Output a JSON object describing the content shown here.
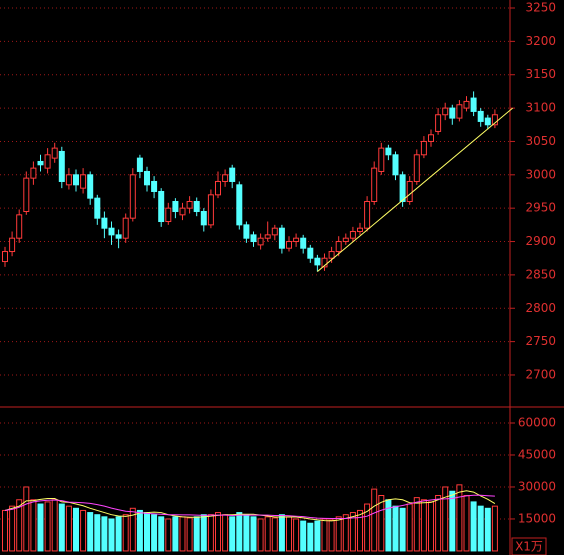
{
  "chart_data": [
    {
      "type": "candlestick",
      "up_color": "#ff3a3a",
      "down_color": "#54ffff",
      "ylim": [
        2652,
        3262
      ],
      "yticks": [
        2700,
        2750,
        2800,
        2850,
        2900,
        2950,
        3000,
        3050,
        3100,
        3150,
        3200,
        3250
      ],
      "grid": true,
      "open": [
        2870,
        2885,
        2905,
        2945,
        2995,
        3020,
        3010,
        3025,
        3035,
        2985,
        3000,
        2980,
        3000,
        2965,
        2935,
        2920,
        2910,
        2905,
        2935,
        3025,
        3005,
        2990,
        2975,
        2930,
        2960,
        2940,
        2950,
        2960,
        2945,
        2925,
        2970,
        2990,
        3010,
        2985,
        2925,
        2910,
        2895,
        2905,
        2910,
        2920,
        2890,
        2900,
        2905,
        2890,
        2875,
        2862,
        2875,
        2885,
        2900,
        2905,
        2915,
        2920,
        2960,
        3005,
        3040,
        3030,
        3000,
        2960,
        2990,
        3030,
        3050,
        3065,
        3090,
        3100,
        3085,
        3100,
        3115,
        3095,
        3085,
        3075
      ],
      "high": [
        2892,
        2915,
        2948,
        3005,
        3020,
        3030,
        3040,
        3048,
        3042,
        3010,
        3008,
        3010,
        3005,
        2970,
        2945,
        2930,
        2918,
        2942,
        3010,
        3030,
        3012,
        2998,
        2980,
        2958,
        2965,
        2958,
        2968,
        2966,
        2950,
        2978,
        3005,
        3008,
        3015,
        2990,
        2930,
        2915,
        2912,
        2930,
        2925,
        2925,
        2908,
        2912,
        2910,
        2895,
        2880,
        2882,
        2892,
        2908,
        2912,
        2922,
        2928,
        2968,
        3020,
        3048,
        3045,
        3035,
        3005,
        2998,
        3038,
        3058,
        3068,
        3100,
        3108,
        3105,
        3112,
        3118,
        3125,
        3100,
        3090,
        3098
      ],
      "low": [
        2862,
        2878,
        2898,
        2940,
        2985,
        3005,
        3002,
        3018,
        2980,
        2978,
        2975,
        2972,
        2955,
        2925,
        2905,
        2895,
        2890,
        2898,
        2930,
        2995,
        2975,
        2965,
        2922,
        2925,
        2935,
        2932,
        2942,
        2938,
        2915,
        2920,
        2965,
        2982,
        2980,
        2918,
        2898,
        2892,
        2888,
        2900,
        2902,
        2882,
        2885,
        2892,
        2882,
        2868,
        2855,
        2856,
        2868,
        2878,
        2895,
        2900,
        2910,
        2915,
        2955,
        3000,
        3022,
        2992,
        2952,
        2955,
        2985,
        3025,
        3042,
        3060,
        3082,
        3075,
        3080,
        3095,
        3088,
        3072,
        3068,
        3070
      ],
      "close": [
        2885,
        2905,
        2940,
        2995,
        3010,
        3015,
        3030,
        3040,
        2990,
        3000,
        2985,
        3000,
        2965,
        2935,
        2920,
        2910,
        2905,
        2935,
        3000,
        3005,
        2985,
        2975,
        2930,
        2950,
        2945,
        2950,
        2960,
        2945,
        2925,
        2970,
        2990,
        3000,
        2990,
        2925,
        2905,
        2900,
        2905,
        2910,
        2920,
        2890,
        2900,
        2905,
        2890,
        2875,
        2865,
        2875,
        2885,
        2900,
        2905,
        2915,
        2920,
        2960,
        3010,
        3040,
        3030,
        3000,
        2960,
        2990,
        3030,
        3050,
        3060,
        3090,
        3100,
        3085,
        3105,
        3110,
        3095,
        3080,
        3075,
        3090
      ],
      "trendline": {
        "x": [
          44,
          71.5
        ],
        "y": [
          2855,
          3100
        ],
        "color": "#ffff66"
      }
    },
    {
      "type": "volume",
      "unit_label": "X1万",
      "ylim": [
        -1900,
        67500
      ],
      "yticks": [
        15000,
        30000,
        45000,
        60000
      ],
      "grid": true,
      "values": [
        19000,
        21000,
        24000,
        30000,
        24000,
        22000,
        23000,
        24000,
        22000,
        21000,
        20000,
        19000,
        18000,
        17000,
        16000,
        15000,
        16000,
        17000,
        20000,
        19000,
        18000,
        17000,
        16000,
        15000,
        16000,
        16000,
        15500,
        16000,
        17000,
        17000,
        18000,
        17000,
        16000,
        18000,
        17000,
        16000,
        15000,
        16000,
        15500,
        17000,
        16000,
        15000,
        14000,
        13000,
        14000,
        15000,
        14500,
        16000,
        17000,
        18000,
        19000,
        22000,
        29000,
        26000,
        24000,
        21000,
        20000,
        22000,
        25000,
        24000,
        23000,
        26000,
        30000,
        28000,
        31000,
        26000,
        23000,
        21000,
        20000,
        21000
      ],
      "series": [
        {
          "color": "#ffff66",
          "values": [
            19000,
            20000,
            21000,
            23500,
            23600,
            24200,
            24600,
            24600,
            23000,
            22800,
            22000,
            21200,
            20000,
            19000,
            18000,
            17000,
            16400,
            16200,
            16800,
            17800,
            18000,
            18200,
            18000,
            17000,
            16400,
            16000,
            15800,
            15800,
            16000,
            16300,
            16700,
            17000,
            17000,
            17200,
            17200,
            17200,
            16800,
            16400,
            15900,
            15900,
            15900,
            15900,
            15500,
            15000,
            14600,
            14200,
            14100,
            14500,
            15300,
            16100,
            17000,
            18500,
            21000,
            22800,
            24000,
            24400,
            24000,
            22600,
            22400,
            22600,
            22800,
            24000,
            25200,
            26200,
            27600,
            28200,
            27600,
            25800,
            24200,
            22200
          ]
        },
        {
          "color": "#ff44ff",
          "values": [
            19000,
            19500,
            20500,
            22000,
            23000,
            23500,
            23800,
            23900,
            23600,
            22900,
            22800,
            22600,
            22300,
            21700,
            21000,
            20100,
            19300,
            18600,
            18400,
            17900,
            17600,
            17400,
            17200,
            17000,
            17000,
            16900,
            16900,
            16800,
            16700,
            16800,
            16800,
            16800,
            16600,
            16800,
            16800,
            16800,
            16800,
            16800,
            16600,
            16600,
            16500,
            16300,
            16100,
            15700,
            15400,
            15300,
            15200,
            15200,
            15200,
            15500,
            15700,
            16300,
            17800,
            19100,
            20100,
            20700,
            21300,
            22100,
            22900,
            23500,
            23900,
            24300,
            24400,
            24600,
            25300,
            25800,
            26100,
            26100,
            25900,
            25700
          ]
        }
      ]
    }
  ]
}
